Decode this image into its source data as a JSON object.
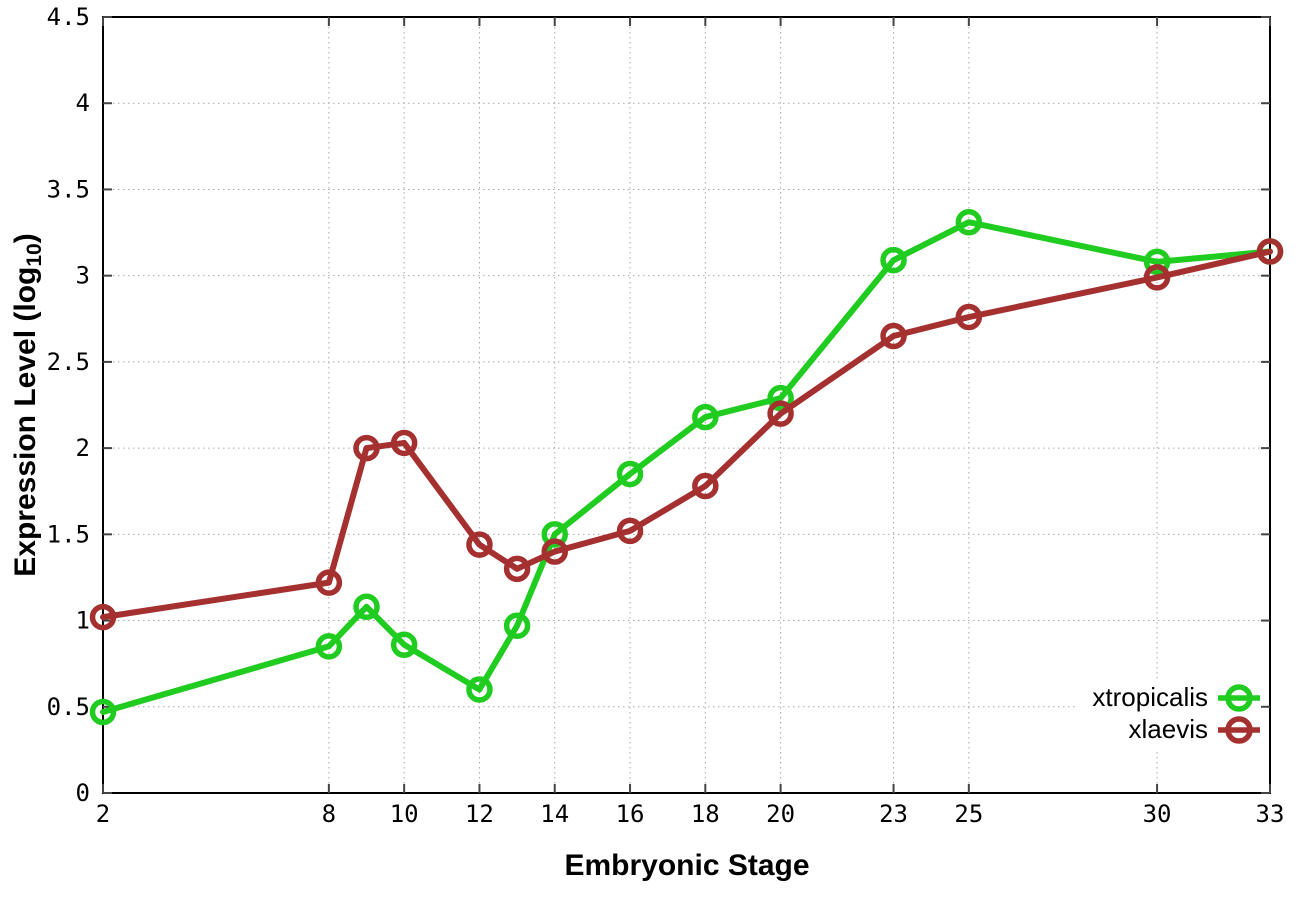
{
  "chart_data": {
    "type": "line",
    "title": "",
    "xlabel": "Embryonic Stage",
    "ylabel": "Expression Level (log10)",
    "ylabel_parts": {
      "prefix": "Expression Level (log",
      "subscript": "10",
      "suffix": ")"
    },
    "xlim": [
      2,
      33
    ],
    "ylim": [
      0,
      4.5
    ],
    "xticks": [
      "2",
      "8",
      "10",
      "12",
      "14",
      "16",
      "18",
      "20",
      "23",
      "25",
      "30",
      "33"
    ],
    "yticks": [
      "0",
      "0.5",
      "1",
      "1.5",
      "2",
      "2.5",
      "3",
      "3.5",
      "4",
      "4.5"
    ],
    "grid": {
      "style": "dotted",
      "color": "#a8a8a8"
    },
    "axis_color": "#000000",
    "tick_color": "#444444",
    "background": "#ffffff",
    "legend_position": "inside-bottom-right",
    "marker": "open-circle",
    "x": [
      2,
      8,
      9,
      10,
      12,
      13,
      14,
      16,
      18,
      20,
      23,
      25,
      30,
      33
    ],
    "series": [
      {
        "name": "xtropicalis",
        "color": "#20cc20",
        "values": [
          0.47,
          0.85,
          1.08,
          0.86,
          0.6,
          0.97,
          1.5,
          1.85,
          2.18,
          2.29,
          3.09,
          3.31,
          3.08,
          3.14
        ]
      },
      {
        "name": "xlaevis",
        "color": "#a53030",
        "values": [
          1.02,
          1.22,
          2.0,
          2.03,
          1.44,
          1.3,
          1.4,
          1.52,
          1.78,
          2.2,
          2.65,
          2.76,
          2.99,
          3.14
        ]
      }
    ]
  }
}
